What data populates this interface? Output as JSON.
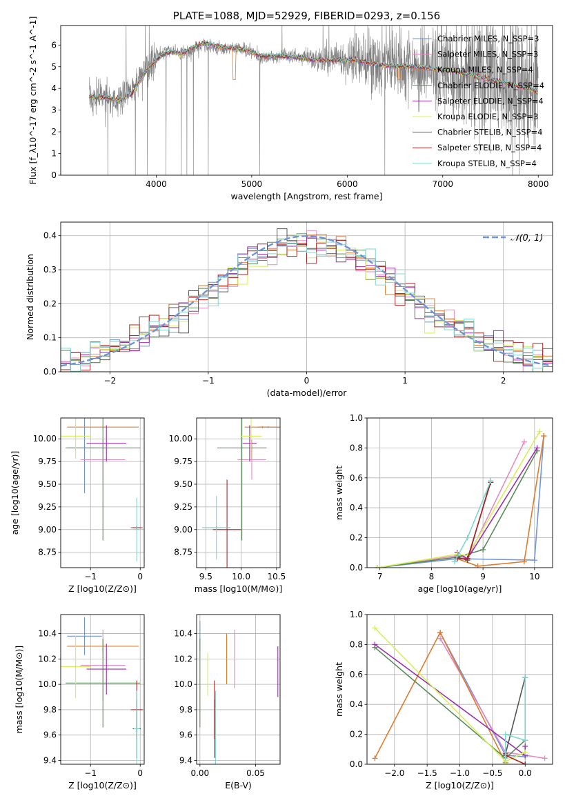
{
  "chart_data": [
    {
      "type": "line",
      "id": "spectrum",
      "title": "PLATE=1088, MJD=52929, FIBERID=0293, z=0.156",
      "xlabel": "wavelength [Angstrom, rest frame]",
      "ylabel": "Flux [f_λ10^-17 erg cm^-2 s^-1 A^-1]",
      "xlim": [
        3000,
        8150
      ],
      "ylim": [
        0,
        6.9
      ],
      "xticks": [
        4000,
        5000,
        6000,
        7000,
        8000
      ],
      "yticks": [
        0,
        1,
        2,
        3,
        4,
        5,
        6
      ],
      "grid": false,
      "legend_position": "top-right",
      "data_color": "#808080",
      "data_spectrum": {
        "x": [
          3300,
          3450,
          3550,
          3650,
          3750,
          3850,
          3950,
          4050,
          4150,
          4250,
          4350,
          4500,
          4700,
          4900,
          5100,
          5300,
          5500,
          5700,
          5900,
          6100,
          6300,
          6500,
          6700,
          6900,
          7100,
          7300,
          7500,
          7700,
          7900,
          8000
        ],
        "y": [
          3.5,
          3.6,
          3.4,
          3.6,
          3.9,
          4.6,
          5.2,
          5.6,
          5.8,
          5.6,
          5.7,
          6.0,
          5.8,
          5.9,
          5.4,
          5.5,
          5.5,
          5.3,
          5.4,
          5.3,
          5.1,
          5.1,
          5.0,
          4.9,
          4.8,
          4.6,
          4.5,
          4.2,
          4.0,
          3.8
        ]
      },
      "series": [
        {
          "name": "Chabrier MILES, N_SSP=3",
          "color": "#6f94d8"
        },
        {
          "name": "Salpeter MILES, N_SSP=3",
          "color": "#e68ac4"
        },
        {
          "name": "Kroupa MILES, N_SSP=4",
          "color": "#e07b2c"
        },
        {
          "name": "Chabrier ELODIE, N_SSP=4",
          "color": "#5a8a5a"
        },
        {
          "name": "Salpeter ELODIE, N_SSP=4",
          "color": "#9b2fae"
        },
        {
          "name": "Kroupa ELODIE, N_SSP=3",
          "color": "#d4f055"
        },
        {
          "name": "Chabrier STELIB, N_SSP=4",
          "color": "#555555"
        },
        {
          "name": "Salpeter STELIB, N_SSP=4",
          "color": "#b22222"
        },
        {
          "name": "Kroupa STELIB, N_SSP=4",
          "color": "#7ed6d2"
        }
      ],
      "model_spectrum": {
        "x": [
          3300,
          3450,
          3550,
          3650,
          3750,
          3850,
          3950,
          4050,
          4150,
          4250,
          4350,
          4500,
          4700,
          4900,
          5100,
          5300,
          5500,
          5700,
          5900,
          6100,
          6300,
          6500,
          6700,
          6900,
          7100,
          7300,
          7500,
          7700,
          7900,
          8000
        ],
        "y": [
          3.6,
          3.6,
          3.5,
          3.5,
          3.8,
          4.5,
          5.1,
          5.5,
          5.7,
          5.6,
          5.8,
          6.1,
          5.9,
          5.8,
          5.5,
          5.5,
          5.4,
          5.3,
          5.3,
          5.3,
          5.1,
          5.0,
          5.0,
          4.9,
          4.8,
          4.6,
          4.4,
          4.2,
          4.0,
          3.8
        ]
      }
    },
    {
      "type": "line",
      "id": "residuals",
      "xlabel": "(data-model)/error",
      "ylabel": "Normed distribution",
      "xlim": [
        -2.5,
        2.5
      ],
      "ylim": [
        0,
        0.44
      ],
      "xticks": [
        -2,
        -1,
        0,
        1,
        2
      ],
      "yticks": [
        0.0,
        0.1,
        0.2,
        0.3,
        0.4
      ],
      "grid": true,
      "legend_position": "top-right",
      "legend_label": "𝒩(0, 1)",
      "gaussian_color": "#6f94d8"
    },
    {
      "type": "scatter",
      "id": "age-vs-Z",
      "xlabel": "Z [log10(Z/Z⊙)]",
      "ylabel": "age  [log10(age/yr)]",
      "xlim": [
        -1.6,
        0.08
      ],
      "ylim": [
        8.58,
        10.23
      ],
      "xticks": [
        -1,
        0
      ],
      "yticks": [
        8.75,
        9.0,
        9.25,
        9.5,
        9.75,
        10.0
      ],
      "grid": true,
      "points": [
        {
          "x": -1.12,
          "y": 9.9,
          "xerr": 0.35,
          "yerr": 0.5,
          "color": "#6f94d8"
        },
        {
          "x": -0.75,
          "y": 9.77,
          "xerr": 0.45,
          "yerr": 0.22,
          "color": "#e68ac4"
        },
        {
          "x": -0.75,
          "y": 10.13,
          "xerr": 0.72,
          "yerr": 0.01,
          "color": "#e07b2c"
        },
        {
          "x": -0.75,
          "y": 9.9,
          "xerr": 0.75,
          "yerr": 1.02,
          "color": "#5a8a5a"
        },
        {
          "x": -0.68,
          "y": 9.95,
          "xerr": 0.4,
          "yerr": 0.2,
          "color": "#9b2fae"
        },
        {
          "x": -1.3,
          "y": 10.03,
          "xerr": 0.3,
          "yerr": 0.25,
          "color": "#d4f055"
        },
        {
          "x": -0.07,
          "y": 9.02,
          "xerr": 0.08,
          "yerr": 0.02,
          "color": "#555555"
        },
        {
          "x": -0.07,
          "y": 9.02,
          "xerr": 0.12,
          "yerr": 0.02,
          "color": "#b22222"
        },
        {
          "x": -0.07,
          "y": 9.0,
          "xerr": 0.06,
          "yerr": 0.35,
          "color": "#7ed6d2"
        }
      ]
    },
    {
      "type": "scatter",
      "id": "age-vs-mass",
      "xlabel": "mass [log10(M/M⊙)]",
      "ylabel": "",
      "xlim": [
        9.37,
        10.55
      ],
      "ylim": [
        8.58,
        10.23
      ],
      "xticks": [
        9.5,
        10.0,
        10.5
      ],
      "yticks": [
        8.75,
        9.0,
        9.25,
        9.5,
        9.75,
        10.0
      ],
      "grid": true,
      "points": [
        {
          "x": 10.38,
          "y": 10.13,
          "xerr": 0.15,
          "yerr": 0.01,
          "color": "#6f94d8"
        },
        {
          "x": 10.15,
          "y": 9.77,
          "xerr": 0.2,
          "yerr": 0.22,
          "color": "#e68ac4"
        },
        {
          "x": 10.3,
          "y": 10.13,
          "xerr": 0.25,
          "yerr": 0.01,
          "color": "#e07b2c"
        },
        {
          "x": 10.01,
          "y": 9.9,
          "xerr": 0.35,
          "yerr": 1.02,
          "color": "#5a8a5a"
        },
        {
          "x": 10.12,
          "y": 9.95,
          "xerr": 0.1,
          "yerr": 0.2,
          "color": "#9b2fae"
        },
        {
          "x": 10.14,
          "y": 10.03,
          "xerr": 0.15,
          "yerr": 0.25,
          "color": "#d4f055"
        },
        {
          "x": 9.65,
          "y": 9.02,
          "xerr": 0.2,
          "yerr": 0.02,
          "color": "#555555"
        },
        {
          "x": 9.8,
          "y": 9.0,
          "xerr": 0.2,
          "yerr": 0.55,
          "color": "#b22222"
        },
        {
          "x": 9.65,
          "y": 9.02,
          "xerr": 0.2,
          "yerr": 0.35,
          "color": "#7ed6d2"
        }
      ]
    },
    {
      "type": "line",
      "id": "weight-vs-age",
      "xlabel": "age  [log10(age/yr)]",
      "ylabel": "mass weight",
      "xlim": [
        6.75,
        10.35
      ],
      "ylim": [
        0,
        1.0
      ],
      "xticks": [
        7,
        8,
        9,
        10
      ],
      "yticks": [
        0.0,
        0.2,
        0.4,
        0.6,
        0.8,
        1.0
      ],
      "grid": true,
      "series": [
        {
          "color": "#6f94d8",
          "x": [
            6.95,
            8.5,
            10.0,
            10.18
          ],
          "y": [
            0.0,
            0.06,
            0.05,
            0.88
          ]
        },
        {
          "color": "#e68ac4",
          "x": [
            6.95,
            8.5,
            8.7,
            9.8
          ],
          "y": [
            0.0,
            0.08,
            0.06,
            0.84
          ]
        },
        {
          "color": "#e07b2c",
          "x": [
            8.5,
            8.9,
            9.8,
            10.18
          ],
          "y": [
            0.06,
            0.01,
            0.04,
            0.88
          ]
        },
        {
          "color": "#5a8a5a",
          "x": [
            6.95,
            8.5,
            9.0,
            10.05
          ],
          "y": [
            0.0,
            0.07,
            0.12,
            0.78
          ]
        },
        {
          "color": "#9b2fae",
          "x": [
            8.5,
            8.7,
            10.05
          ],
          "y": [
            0.1,
            0.06,
            0.8
          ]
        },
        {
          "color": "#d4f055",
          "x": [
            6.95,
            8.5,
            8.7,
            10.1
          ],
          "y": [
            0.0,
            0.09,
            0.08,
            0.91
          ]
        },
        {
          "color": "#555555",
          "x": [
            8.5,
            8.7,
            9.15
          ],
          "y": [
            0.07,
            0.05,
            0.58
          ]
        },
        {
          "color": "#b22222",
          "x": [
            8.5,
            8.7,
            9.15
          ],
          "y": [
            0.06,
            0.06,
            0.57
          ]
        },
        {
          "color": "#7ed6d2",
          "x": [
            8.45,
            8.7,
            9.15
          ],
          "y": [
            0.04,
            0.2,
            0.58
          ]
        }
      ]
    },
    {
      "type": "scatter",
      "id": "mass-vs-Z",
      "xlabel": "Z [log10(Z/Z⊙)]",
      "ylabel": "mass [log10(M/M⊙)]",
      "xlim": [
        -1.6,
        0.08
      ],
      "ylim": [
        9.37,
        10.55
      ],
      "xticks": [
        -1,
        0
      ],
      "yticks": [
        9.4,
        9.6,
        9.8,
        10.0,
        10.2,
        10.4
      ],
      "grid": true,
      "points": [
        {
          "x": -1.12,
          "y": 10.38,
          "xerr": 0.35,
          "yerr": 0.15,
          "color": "#6f94d8"
        },
        {
          "x": -0.75,
          "y": 10.15,
          "xerr": 0.45,
          "yerr": 0.28,
          "color": "#e68ac4"
        },
        {
          "x": -0.75,
          "y": 10.3,
          "xerr": 0.72,
          "yerr": 0.05,
          "color": "#e07b2c"
        },
        {
          "x": -0.75,
          "y": 10.01,
          "xerr": 0.75,
          "yerr": 0.35,
          "color": "#5a8a5a"
        },
        {
          "x": -0.68,
          "y": 10.12,
          "xerr": 0.4,
          "yerr": 0.2,
          "color": "#9b2fae"
        },
        {
          "x": -1.3,
          "y": 10.14,
          "xerr": 0.3,
          "yerr": 0.25,
          "color": "#d4f055"
        },
        {
          "x": -0.07,
          "y": 9.65,
          "xerr": 0.08,
          "yerr": 0.23,
          "color": "#555555"
        },
        {
          "x": -0.07,
          "y": 9.8,
          "xerr": 0.12,
          "yerr": 0.23,
          "color": "#b22222"
        },
        {
          "x": -0.07,
          "y": 9.65,
          "xerr": 0.06,
          "yerr": 0.3,
          "color": "#7ed6d2"
        }
      ]
    },
    {
      "type": "scatter",
      "id": "mass-vs-ebv",
      "xlabel": "E(B-V)",
      "ylabel": "",
      "xlim": [
        -0.003,
        0.072
      ],
      "ylim": [
        9.37,
        10.55
      ],
      "xticks": [
        0.0,
        0.05
      ],
      "yticks": [
        9.4,
        9.6,
        9.8,
        10.0,
        10.2,
        10.4
      ],
      "grid": true,
      "points": [
        {
          "x": 0.0,
          "y": 10.38,
          "yerr": 0.12,
          "color": "#6f94d8"
        },
        {
          "x": 0.031,
          "y": 10.2,
          "yerr": 0.23,
          "color": "#e68ac4"
        },
        {
          "x": 0.024,
          "y": 10.2,
          "yerr": 0.2,
          "color": "#e07b2c"
        },
        {
          "x": 0.0,
          "y": 10.01,
          "yerr": 0.35,
          "color": "#5a8a5a"
        },
        {
          "x": 0.07,
          "y": 10.1,
          "yerr": 0.2,
          "color": "#9b2fae"
        },
        {
          "x": 0.007,
          "y": 10.08,
          "yerr": 0.17,
          "color": "#d4f055"
        },
        {
          "x": 0.013,
          "y": 9.65,
          "yerr": 0.23,
          "color": "#555555"
        },
        {
          "x": 0.013,
          "y": 9.8,
          "yerr": 0.23,
          "color": "#b22222"
        },
        {
          "x": 0.014,
          "y": 9.65,
          "yerr": 0.3,
          "color": "#7ed6d2"
        }
      ]
    },
    {
      "type": "line",
      "id": "weight-vs-Z",
      "xlabel": "Z [log10(Z/Z⊙)]",
      "ylabel": "mass weight",
      "xlim": [
        -2.42,
        0.42
      ],
      "ylim": [
        0,
        1.0
      ],
      "xticks": [
        -2.0,
        -1.5,
        -1.0,
        -0.5,
        0.0
      ],
      "yticks": [
        0.0,
        0.2,
        0.4,
        0.6,
        0.8,
        1.0
      ],
      "grid": true,
      "series": [
        {
          "color": "#6f94d8",
          "x": [
            -1.3,
            -0.3,
            0.0
          ],
          "y": [
            0.88,
            0.06,
            0.05
          ]
        },
        {
          "color": "#e68ac4",
          "x": [
            -1.3,
            -0.3,
            0.3
          ],
          "y": [
            0.84,
            0.08,
            0.04
          ]
        },
        {
          "color": "#e07b2c",
          "x": [
            -2.3,
            -1.3,
            -0.3
          ],
          "y": [
            0.04,
            0.88,
            0.01
          ]
        },
        {
          "color": "#5a8a5a",
          "x": [
            -2.3,
            -0.3,
            0.0
          ],
          "y": [
            0.78,
            0.04,
            0.16
          ]
        },
        {
          "color": "#9b2fae",
          "x": [
            -2.3,
            0.0,
            0.0
          ],
          "y": [
            0.8,
            0.06,
            0.12
          ]
        },
        {
          "color": "#d4f055",
          "x": [
            -2.3,
            -0.3,
            0.0
          ],
          "y": [
            0.91,
            0.02,
            0.08
          ]
        },
        {
          "color": "#555555",
          "x": [
            -0.3,
            0.0
          ],
          "y": [
            0.07,
            0.58
          ]
        },
        {
          "color": "#b22222",
          "x": [
            -0.3,
            0.0
          ],
          "y": [
            0.06,
            0.0
          ]
        },
        {
          "color": "#7ed6d2",
          "x": [
            -0.3,
            -0.3,
            0.0,
            0.0
          ],
          "y": [
            0.04,
            0.2,
            0.16,
            0.58
          ]
        }
      ]
    }
  ]
}
